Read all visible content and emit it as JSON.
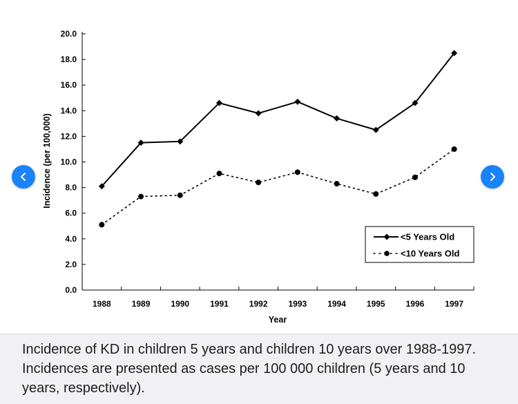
{
  "chart_data": {
    "type": "line",
    "title": "",
    "xlabel": "Year",
    "ylabel": "Incidence (per 100,000)",
    "categories": [
      "1988",
      "1989",
      "1990",
      "1991",
      "1992",
      "1993",
      "1994",
      "1995",
      "1996",
      "1997"
    ],
    "ylim": [
      0,
      20
    ],
    "yticks": [
      "0.0",
      "2.0",
      "4.0",
      "6.0",
      "8.0",
      "10.0",
      "12.0",
      "14.0",
      "16.0",
      "18.0",
      "20.0"
    ],
    "legend_position": "bottom-right",
    "grid": false,
    "series": [
      {
        "name": "<5 Years Old",
        "style": "solid",
        "marker": "diamond",
        "values": [
          8.1,
          11.5,
          11.6,
          14.6,
          13.8,
          14.7,
          13.4,
          12.5,
          14.6,
          18.5
        ]
      },
      {
        "name": "<10 Years Old",
        "style": "dotted",
        "marker": "circle",
        "values": [
          5.1,
          7.3,
          7.4,
          9.1,
          8.4,
          9.2,
          8.3,
          7.5,
          8.8,
          11.0
        ]
      }
    ]
  },
  "caption": "Incidence of KD in children 5 years and children 10 years over 1988-1997. Incidences are presented as cases per 100 000 children (5 years and 10 years, respectively).",
  "nav": {
    "prev_icon": "chevron-left-icon",
    "next_icon": "chevron-right-icon",
    "color": "#1a82fb"
  }
}
